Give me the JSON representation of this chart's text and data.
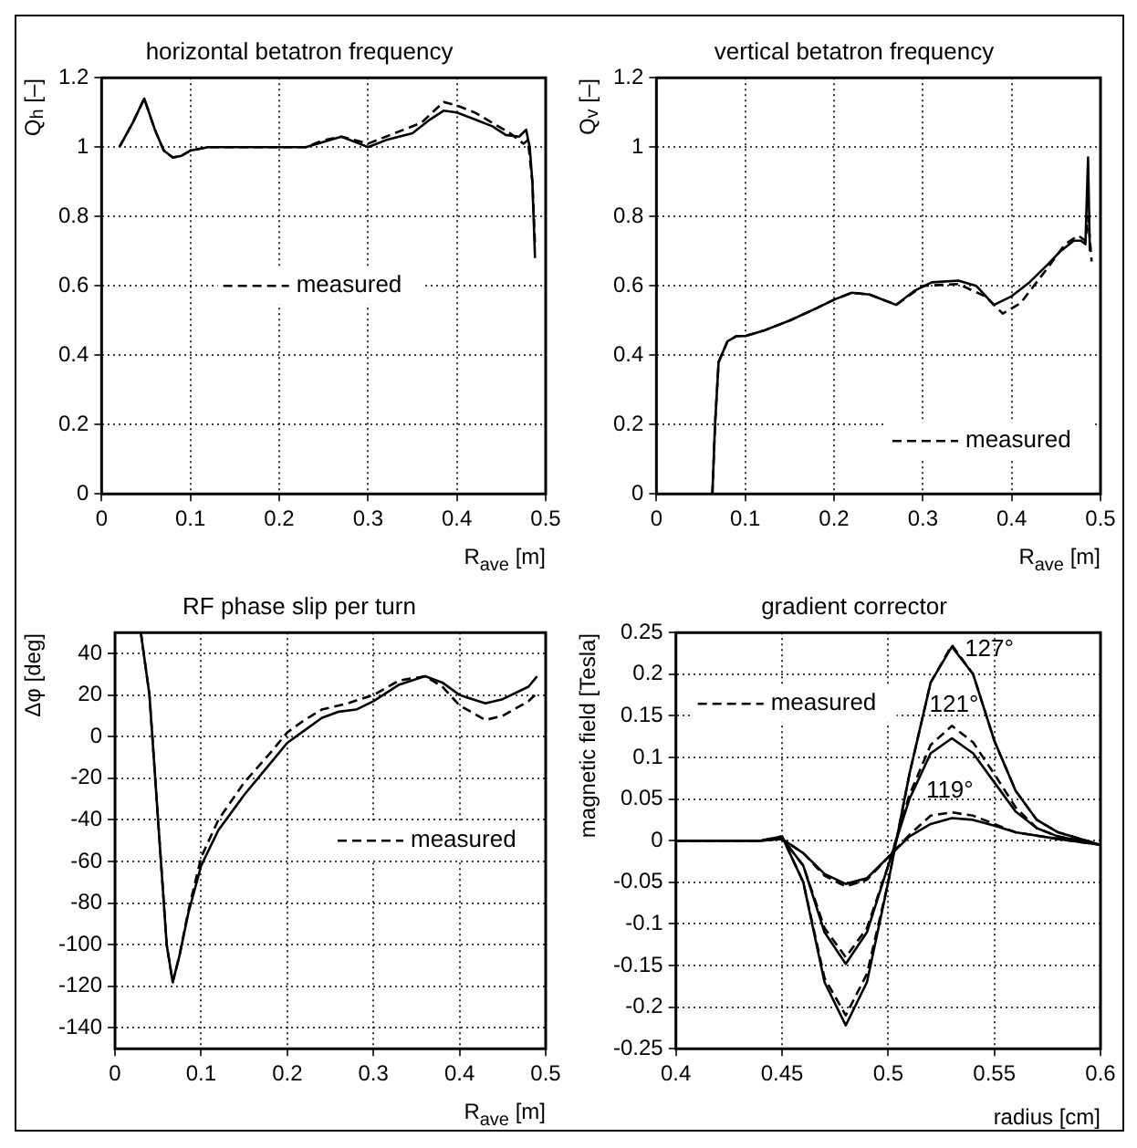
{
  "chart_data": [
    {
      "type": "line",
      "title": "horizontal betatron frequency",
      "xlabel": "R$_{ave}$ [m]",
      "ylabel": "Q$_{h}$ [–]",
      "xlim": [
        0,
        0.5
      ],
      "xticks": [
        0,
        0.1,
        0.2,
        0.3,
        0.4,
        0.5
      ],
      "ylim": [
        0,
        1.2
      ],
      "yticks": [
        0,
        0.2,
        0.4,
        0.6,
        0.8,
        1,
        1.2
      ],
      "grid": true,
      "legend": "center",
      "series": [
        {
          "color": "#000000",
          "line_style": "solid",
          "x": [
            0.02,
            0.035,
            0.048,
            0.06,
            0.07,
            0.08,
            0.09,
            0.1,
            0.12,
            0.2,
            0.23,
            0.25,
            0.27,
            0.29,
            0.3,
            0.32,
            0.35,
            0.37,
            0.385,
            0.4,
            0.42,
            0.44,
            0.455,
            0.47,
            0.478,
            0.482,
            0.485,
            0.488
          ],
          "values": [
            1.0,
            1.07,
            1.14,
            1.05,
            0.99,
            0.97,
            0.975,
            0.99,
            1.0,
            1.0,
            1.0,
            1.015,
            1.03,
            1.01,
            1.0,
            1.02,
            1.04,
            1.08,
            1.105,
            1.1,
            1.08,
            1.06,
            1.035,
            1.03,
            1.05,
            1.0,
            0.9,
            0.68
          ]
        },
        {
          "name": "measured",
          "color": "#000000",
          "line_style": "dashed",
          "x": [
            0.02,
            0.035,
            0.048,
            0.06,
            0.07,
            0.08,
            0.09,
            0.1,
            0.12,
            0.2,
            0.23,
            0.25,
            0.27,
            0.3,
            0.33,
            0.36,
            0.385,
            0.4,
            0.42,
            0.44,
            0.46,
            0.475,
            0.48,
            0.485,
            0.488
          ],
          "values": [
            1.0,
            1.07,
            1.14,
            1.05,
            0.99,
            0.97,
            0.975,
            0.99,
            1.0,
            1.0,
            1.0,
            1.02,
            1.03,
            1.01,
            1.04,
            1.07,
            1.13,
            1.12,
            1.1,
            1.07,
            1.04,
            1.01,
            1.02,
            0.9,
            0.72
          ]
        }
      ]
    },
    {
      "type": "line",
      "title": "vertical betatron frequency",
      "xlabel": "R$_{ave}$ [m]",
      "ylabel": "Q$_{v}$ [–]",
      "xlim": [
        0,
        0.5
      ],
      "xticks": [
        0,
        0.1,
        0.2,
        0.3,
        0.4,
        0.5
      ],
      "ylim": [
        0,
        1.2
      ],
      "yticks": [
        0,
        0.2,
        0.4,
        0.6,
        0.8,
        1,
        1.2
      ],
      "grid": true,
      "legend": "bottom right",
      "series": [
        {
          "color": "#000000",
          "line_style": "solid",
          "x": [
            0.063,
            0.066,
            0.07,
            0.08,
            0.09,
            0.1,
            0.12,
            0.15,
            0.18,
            0.2,
            0.22,
            0.24,
            0.27,
            0.29,
            0.31,
            0.34,
            0.36,
            0.38,
            0.4,
            0.42,
            0.44,
            0.455,
            0.47,
            0.478,
            0.483,
            0.486,
            0.488
          ],
          "values": [
            0,
            0.2,
            0.38,
            0.44,
            0.455,
            0.455,
            0.47,
            0.5,
            0.535,
            0.56,
            0.58,
            0.575,
            0.545,
            0.585,
            0.61,
            0.615,
            0.6,
            0.545,
            0.57,
            0.61,
            0.66,
            0.7,
            0.73,
            0.73,
            0.72,
            0.97,
            0.7
          ]
        },
        {
          "name": "measured",
          "color": "#000000",
          "line_style": "dashed",
          "x": [
            0.063,
            0.066,
            0.07,
            0.08,
            0.09,
            0.1,
            0.12,
            0.15,
            0.18,
            0.2,
            0.22,
            0.24,
            0.27,
            0.3,
            0.34,
            0.37,
            0.39,
            0.41,
            0.44,
            0.46,
            0.475,
            0.483,
            0.486,
            0.49
          ],
          "values": [
            0,
            0.2,
            0.38,
            0.44,
            0.455,
            0.455,
            0.47,
            0.5,
            0.535,
            0.56,
            0.58,
            0.575,
            0.545,
            0.6,
            0.605,
            0.57,
            0.52,
            0.55,
            0.65,
            0.72,
            0.745,
            0.73,
            0.8,
            0.67
          ]
        }
      ]
    },
    {
      "type": "line",
      "title": "RF phase slip per turn",
      "xlabel": "R$_{ave}$ [m]",
      "ylabel": "Δφ [deg]",
      "xlim": [
        0,
        0.5
      ],
      "xticks": [
        0,
        0.1,
        0.2,
        0.3,
        0.4,
        0.5
      ],
      "ylim": [
        -150,
        50
      ],
      "yticks": [
        -140,
        -120,
        -100,
        -80,
        -60,
        -40,
        -20,
        0,
        20,
        40
      ],
      "grid": true,
      "legend": "center right",
      "series": [
        {
          "color": "#000000",
          "line_style": "solid",
          "x": [
            0.03,
            0.04,
            0.05,
            0.06,
            0.067,
            0.075,
            0.085,
            0.1,
            0.12,
            0.15,
            0.18,
            0.2,
            0.22,
            0.24,
            0.26,
            0.28,
            0.3,
            0.33,
            0.36,
            0.38,
            0.4,
            0.43,
            0.45,
            0.48,
            0.49
          ],
          "values": [
            50,
            20,
            -40,
            -100,
            -118,
            -105,
            -85,
            -62,
            -45,
            -28,
            -13,
            -3,
            3,
            9,
            12,
            13,
            17,
            25,
            29,
            26,
            20,
            16,
            18,
            24,
            29
          ]
        },
        {
          "name": "measured",
          "color": "#000000",
          "line_style": "dashed",
          "x": [
            0.03,
            0.04,
            0.05,
            0.06,
            0.067,
            0.075,
            0.085,
            0.1,
            0.12,
            0.15,
            0.18,
            0.2,
            0.22,
            0.24,
            0.27,
            0.3,
            0.33,
            0.36,
            0.38,
            0.4,
            0.43,
            0.45,
            0.48,
            0.49
          ],
          "values": [
            50,
            20,
            -40,
            -100,
            -118,
            -105,
            -84,
            -58,
            -40,
            -22,
            -8,
            2,
            8,
            13,
            16,
            20,
            27,
            29,
            24,
            15,
            8,
            10,
            17,
            21
          ]
        }
      ]
    },
    {
      "type": "line",
      "title": "gradient corrector",
      "xlabel": "radius [cm]",
      "ylabel": "magnetic field [Tesla]",
      "xlim": [
        0.4,
        0.6
      ],
      "xticks": [
        0.4,
        0.45,
        0.5,
        0.55,
        0.6
      ],
      "ylim": [
        -0.25,
        0.25
      ],
      "yticks": [
        -0.25,
        -0.2,
        -0.15,
        -0.1,
        -0.05,
        0,
        0.05,
        0.1,
        0.15,
        0.2,
        0.25
      ],
      "grid": true,
      "legend": "top left",
      "annotations": [
        {
          "text": "127°",
          "x": 0.53,
          "y": 0.235
        },
        {
          "text": "121°",
          "x": 0.531,
          "y": 0.138
        },
        {
          "text": "119°",
          "x": 0.529,
          "y": 0.034
        }
      ],
      "series": [
        {
          "color": "#000000",
          "line_style": "solid",
          "x": [
            0.4,
            0.44,
            0.45,
            0.46,
            0.47,
            0.48,
            0.49,
            0.5,
            0.51,
            0.52,
            0.53,
            0.54,
            0.55,
            0.56,
            0.57,
            0.58,
            0.6
          ],
          "values": [
            0,
            0,
            0.005,
            -0.05,
            -0.17,
            -0.222,
            -0.17,
            -0.05,
            0.08,
            0.19,
            0.233,
            0.2,
            0.12,
            0.06,
            0.025,
            0.01,
            -0.005
          ]
        },
        {
          "name": "measured",
          "color": "#000000",
          "line_style": "dashed",
          "x": [
            0.4,
            0.44,
            0.45,
            0.46,
            0.47,
            0.48,
            0.49,
            0.5,
            0.51,
            0.52,
            0.53,
            0.54,
            0.55,
            0.56,
            0.57,
            0.58,
            0.6
          ],
          "values": [
            0,
            0,
            0.005,
            -0.05,
            -0.165,
            -0.21,
            -0.16,
            -0.05,
            0.08,
            0.19,
            0.235,
            0.2,
            0.12,
            0.06,
            0.025,
            0.01,
            -0.005
          ]
        },
        {
          "color": "#000000",
          "line_style": "solid",
          "x": [
            0.4,
            0.44,
            0.45,
            0.46,
            0.47,
            0.48,
            0.49,
            0.5,
            0.51,
            0.52,
            0.53,
            0.54,
            0.55,
            0.56,
            0.57,
            0.58,
            0.6
          ],
          "values": [
            0,
            0,
            0.003,
            -0.03,
            -0.11,
            -0.148,
            -0.11,
            -0.03,
            0.05,
            0.105,
            0.123,
            0.105,
            0.07,
            0.035,
            0.015,
            0.005,
            -0.005
          ]
        },
        {
          "color": "#000000",
          "line_style": "dashed",
          "x": [
            0.4,
            0.44,
            0.45,
            0.46,
            0.47,
            0.48,
            0.49,
            0.5,
            0.51,
            0.52,
            0.53,
            0.54,
            0.55,
            0.56,
            0.57,
            0.58,
            0.6
          ],
          "values": [
            0,
            0,
            0.003,
            -0.03,
            -0.105,
            -0.14,
            -0.105,
            -0.03,
            0.055,
            0.115,
            0.138,
            0.118,
            0.08,
            0.04,
            0.015,
            0.005,
            -0.005
          ]
        },
        {
          "color": "#000000",
          "line_style": "solid",
          "x": [
            0.4,
            0.44,
            0.45,
            0.46,
            0.47,
            0.48,
            0.49,
            0.5,
            0.51,
            0.52,
            0.53,
            0.54,
            0.55,
            0.56,
            0.58,
            0.6
          ],
          "values": [
            0,
            0,
            0.002,
            -0.015,
            -0.04,
            -0.052,
            -0.045,
            -0.02,
            0.005,
            0.02,
            0.027,
            0.025,
            0.018,
            0.01,
            0.002,
            -0.005
          ]
        },
        {
          "color": "#000000",
          "line_style": "dashed",
          "x": [
            0.4,
            0.44,
            0.45,
            0.46,
            0.47,
            0.48,
            0.49,
            0.5,
            0.51,
            0.52,
            0.53,
            0.54,
            0.55,
            0.56,
            0.58,
            0.6
          ],
          "values": [
            0,
            0,
            0.002,
            -0.015,
            -0.042,
            -0.055,
            -0.047,
            -0.02,
            0.007,
            0.03,
            0.034,
            0.03,
            0.02,
            0.01,
            0.002,
            -0.005
          ]
        }
      ]
    }
  ]
}
